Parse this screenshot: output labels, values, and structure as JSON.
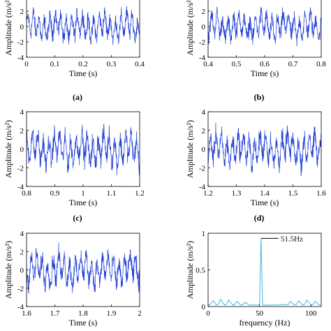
{
  "chart_data": [
    {
      "panel": "(a)",
      "type": "line",
      "xlabel": "Time (s)",
      "ylabel": "Amplitude (m/s²)",
      "xlim": [
        0,
        0.4
      ],
      "ylim": [
        -4,
        4
      ],
      "xticks": [
        "0",
        "0.1",
        "0.2",
        "0.3",
        "0.4"
      ],
      "yticks": [
        "-4",
        "-2",
        "0",
        "2",
        "4"
      ],
      "series": [
        {
          "color": "#1f3fd6",
          "signal": "vibration",
          "approx_amplitude_range": [
            -3,
            3
          ]
        }
      ]
    },
    {
      "panel": "(b)",
      "type": "line",
      "xlabel": "Time (s)",
      "ylabel": "Amplitude (m/s²)",
      "xlim": [
        0.4,
        0.8
      ],
      "ylim": [
        -4,
        4
      ],
      "xticks": [
        "0.4",
        "0.5",
        "0.6",
        "0.7",
        "0.8"
      ],
      "yticks": [
        "-4",
        "-2",
        "0",
        "2",
        "4"
      ],
      "series": [
        {
          "color": "#1f3fd6",
          "signal": "vibration",
          "approx_amplitude_range": [
            -3,
            3
          ]
        }
      ]
    },
    {
      "panel": "(c)",
      "type": "line",
      "xlabel": "Time (s)",
      "ylabel": "Amplitude (m/s²)",
      "xlim": [
        0.8,
        1.2
      ],
      "ylim": [
        -4,
        4
      ],
      "xticks": [
        "0.8",
        "0.9",
        "1",
        "1.1",
        "1.2"
      ],
      "yticks": [
        "-4",
        "-2",
        "0",
        "2",
        "4"
      ],
      "series": [
        {
          "color": "#1f3fd6",
          "signal": "vibration",
          "approx_amplitude_range": [
            -3,
            3
          ]
        }
      ]
    },
    {
      "panel": "(d)",
      "type": "line",
      "xlabel": "Time (s)",
      "ylabel": "Amplitude (m/s²)",
      "xlim": [
        1.2,
        1.6
      ],
      "ylim": [
        -4,
        4
      ],
      "xticks": [
        "1.2",
        "1.3",
        "1.4",
        "1.5",
        "1.6"
      ],
      "yticks": [
        "-4",
        "-2",
        "0",
        "2",
        "4"
      ],
      "series": [
        {
          "color": "#1f3fd6",
          "signal": "vibration",
          "approx_amplitude_range": [
            -3,
            3
          ]
        }
      ]
    },
    {
      "panel": "(e)",
      "type": "line",
      "xlabel": "Time (s)",
      "ylabel": "Amplitude (m/s²)",
      "xlim": [
        1.6,
        2
      ],
      "ylim": [
        -4,
        4
      ],
      "xticks": [
        "1.6",
        "1.7",
        "1.8",
        "1.9",
        "2"
      ],
      "yticks": [
        "-4",
        "-2",
        "0",
        "2",
        "4"
      ],
      "series": [
        {
          "color": "#1f3fd6",
          "signal": "vibration",
          "approx_amplitude_range": [
            -3,
            3
          ]
        }
      ]
    },
    {
      "panel": "(f)",
      "type": "line",
      "xlabel": "frequency (Hz)",
      "ylabel": "Amplitude (m/s²)",
      "xlim": [
        0,
        110
      ],
      "ylim": [
        0,
        1
      ],
      "xticks": [
        "0",
        "50",
        "100"
      ],
      "yticks": [
        "0",
        "0.5",
        "1"
      ],
      "annotation": {
        "text": "51.5Hz",
        "x": 51.5,
        "y": 0.93
      },
      "series": [
        {
          "color": "#40b8d8",
          "x": [
            0,
            2,
            5,
            8,
            10,
            12,
            16,
            18,
            20,
            24,
            26,
            28,
            32,
            34,
            36,
            40,
            44,
            48,
            50,
            51.5,
            53,
            56,
            60,
            64,
            68,
            72,
            76,
            78,
            80,
            84,
            86,
            88,
            92,
            94,
            96,
            100,
            102,
            104,
            108,
            110
          ],
          "y": [
            0.02,
            0.03,
            0.08,
            0.02,
            0.03,
            0.1,
            0.02,
            0.03,
            0.09,
            0.02,
            0.03,
            0.07,
            0.02,
            0.03,
            0.06,
            0.02,
            0.02,
            0.02,
            0.02,
            0.93,
            0.02,
            0.02,
            0.02,
            0.02,
            0.02,
            0.03,
            0.02,
            0.03,
            0.07,
            0.02,
            0.03,
            0.08,
            0.02,
            0.03,
            0.09,
            0.02,
            0.03,
            0.07,
            0.02,
            0.02
          ]
        }
      ]
    }
  ]
}
